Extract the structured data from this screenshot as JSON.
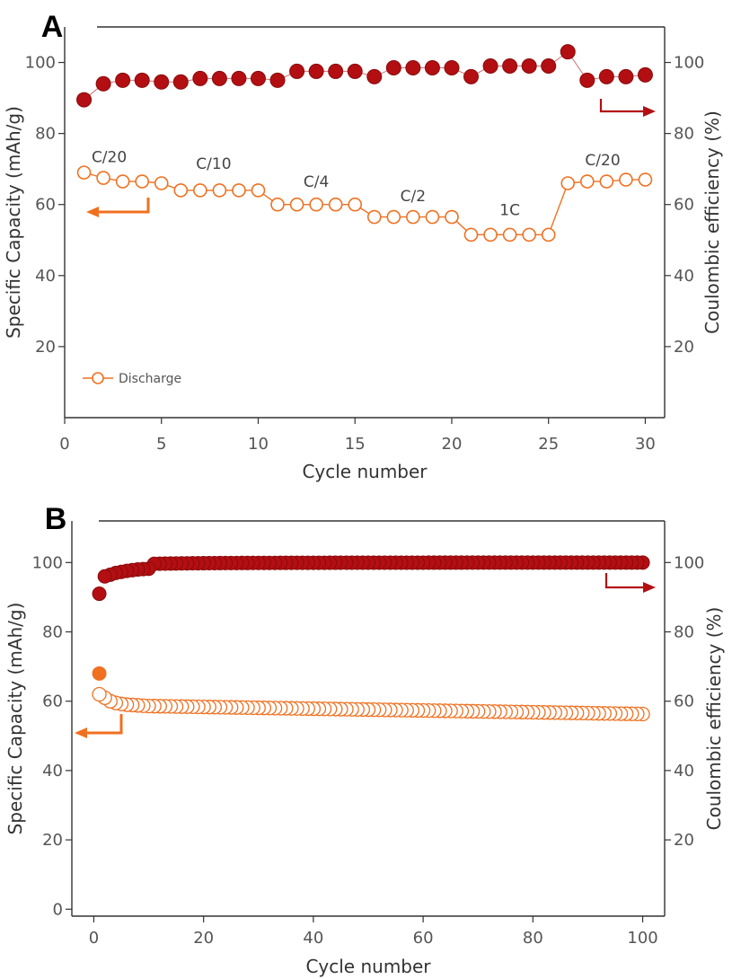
{
  "colors": {
    "efficiency": "#b30f12",
    "discharge": "#f07020",
    "axis": "#555555"
  },
  "chart_data": [
    {
      "panel": "A",
      "type": "scatter",
      "xlabel": "Cycle number",
      "ylabel_left": "Specific Capacity (mAh/g)",
      "ylabel_right": "Coulombic efficiency (%)",
      "xlim": [
        0,
        31
      ],
      "ylim": [
        0,
        110
      ],
      "xticks": [
        0,
        5,
        10,
        15,
        20,
        25,
        30
      ],
      "yticks_left": [
        20,
        40,
        60,
        80,
        100
      ],
      "yticks_right": [
        20,
        40,
        60,
        80,
        100
      ],
      "legend": {
        "label": "Discharge",
        "placement": "bottom-left"
      },
      "rate_labels": [
        {
          "text": "C/20",
          "x": 2.3,
          "y": 72
        },
        {
          "text": "C/10",
          "x": 7.7,
          "y": 70
        },
        {
          "text": "C/4",
          "x": 13,
          "y": 65
        },
        {
          "text": "C/2",
          "x": 18,
          "y": 61
        },
        {
          "text": "1C",
          "x": 23,
          "y": 57
        },
        {
          "text": "C/20",
          "x": 27.8,
          "y": 71
        }
      ],
      "series": [
        {
          "axis": "right",
          "marker": "filled",
          "x": [
            1,
            2,
            3,
            4,
            5,
            6,
            7,
            8,
            9,
            10,
            11,
            12,
            13,
            14,
            15,
            16,
            17,
            18,
            19,
            20,
            21,
            22,
            23,
            24,
            25,
            26,
            27,
            28,
            29,
            30
          ],
          "values": [
            89.5,
            94,
            95,
            95,
            94.5,
            94.5,
            95.5,
            95.5,
            95.5,
            95.5,
            95,
            97.5,
            97.5,
            97.5,
            97.5,
            96,
            98.5,
            98.5,
            98.5,
            98.5,
            96,
            99,
            99,
            99,
            99,
            103,
            95,
            96,
            96,
            96.5
          ]
        },
        {
          "name": "Discharge",
          "axis": "left",
          "marker": "open",
          "x": [
            1,
            2,
            3,
            4,
            5,
            6,
            7,
            8,
            9,
            10,
            11,
            12,
            13,
            14,
            15,
            16,
            17,
            18,
            19,
            20,
            21,
            22,
            23,
            24,
            25,
            26,
            27,
            28,
            29,
            30
          ],
          "values": [
            69,
            67.5,
            66.5,
            66.5,
            66,
            64,
            64,
            64,
            64,
            64,
            60,
            60,
            60,
            60,
            60,
            56.5,
            56.5,
            56.5,
            56.5,
            56.5,
            51.5,
            51.5,
            51.5,
            51.5,
            51.5,
            66,
            66.5,
            66.5,
            67,
            67
          ]
        }
      ]
    },
    {
      "panel": "B",
      "type": "scatter",
      "xlabel": "Cycle number",
      "ylabel_left": "Specific Capacity (mAh/g)",
      "ylabel_right": "Coulombic efficiency (%)",
      "xlim": [
        -4,
        104
      ],
      "ylim": [
        -2,
        112
      ],
      "xticks": [
        0,
        20,
        40,
        60,
        80,
        100
      ],
      "yticks_left": [
        0,
        20,
        40,
        60,
        80,
        100
      ],
      "yticks_right": [
        20,
        40,
        60,
        80,
        100
      ],
      "series": [
        {
          "axis": "right",
          "marker": "filled",
          "note": "first 10 cycles; cycles 11-100 follow efficiency ≈ 100 - 5/(cycle+1)",
          "x": [
            1,
            2,
            3,
            4,
            5,
            6,
            7,
            8,
            9,
            10
          ],
          "values": [
            91,
            96,
            96.5,
            97,
            97.3,
            97.6,
            97.8,
            98,
            98.1,
            98.2
          ]
        },
        {
          "axis": "left",
          "marker": "open",
          "note": "first cycle also shows a filled charge point at 68; cycles 11-100 decay from 58.5 to 56.3",
          "x": [
            1,
            2,
            3,
            4,
            5,
            6,
            7,
            8,
            9,
            10
          ],
          "values": [
            62,
            61,
            60,
            59.5,
            59.2,
            59,
            58.9,
            58.8,
            58.7,
            58.6
          ]
        }
      ]
    }
  ]
}
